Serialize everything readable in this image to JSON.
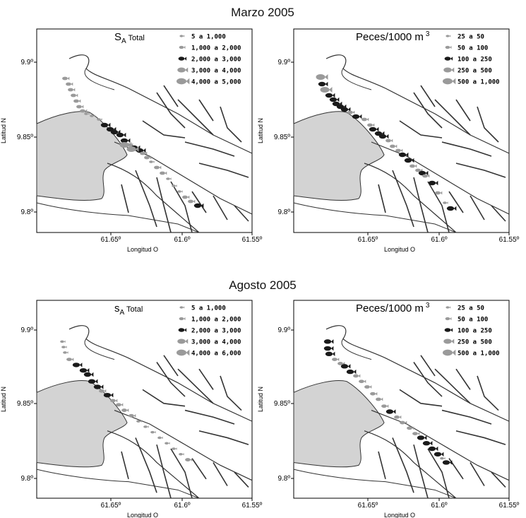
{
  "titles": [
    "Marzo 2005",
    "Agosto 2005"
  ],
  "axes": {
    "ylabel": "Latitud N",
    "xlabel": "Longitud O",
    "yticks": [
      "9.9º",
      "9.85º",
      "9.8º"
    ],
    "xticks": [
      "61.65º",
      "61.6º",
      "61.55º"
    ]
  },
  "panels": [
    {
      "id": "marzo-sa",
      "legend_title": "S",
      "legend_sub": "A",
      "legend_tail": " Total",
      "classes": [
        "5 a 1,000",
        "1,000 a 2,000",
        "2,000 a 3,000",
        "3,000 a 4,000",
        "4,000 a 5,000"
      ]
    },
    {
      "id": "marzo-peces",
      "legend_title": "Peces/1000 m",
      "legend_sup": "3",
      "classes": [
        "25 a 50",
        "50 a 100",
        "100 a 250",
        "250 a 500",
        "500 a 1,000"
      ]
    },
    {
      "id": "agosto-sa",
      "legend_title": "s",
      "legend_sub": "A",
      "legend_tail": " Total",
      "classes": [
        "5 a 1,000",
        "1,000 a 2,000",
        "2,000 a 3,000",
        "3,000 a 4,000",
        "4,000 a 6,000"
      ]
    },
    {
      "id": "agosto-peces",
      "legend_title": "Peces/1000 m",
      "legend_sup": "3",
      "classes": [
        "25 a 50",
        "50 a 100",
        "100 a 250",
        "250 a 500",
        "500 a 1,000"
      ]
    }
  ],
  "colors": {
    "land_fill": "#d3d3d3",
    "dark_fish": "#1a1a1a",
    "gray_fish": "#9a9a9a",
    "coast": "#333333"
  }
}
